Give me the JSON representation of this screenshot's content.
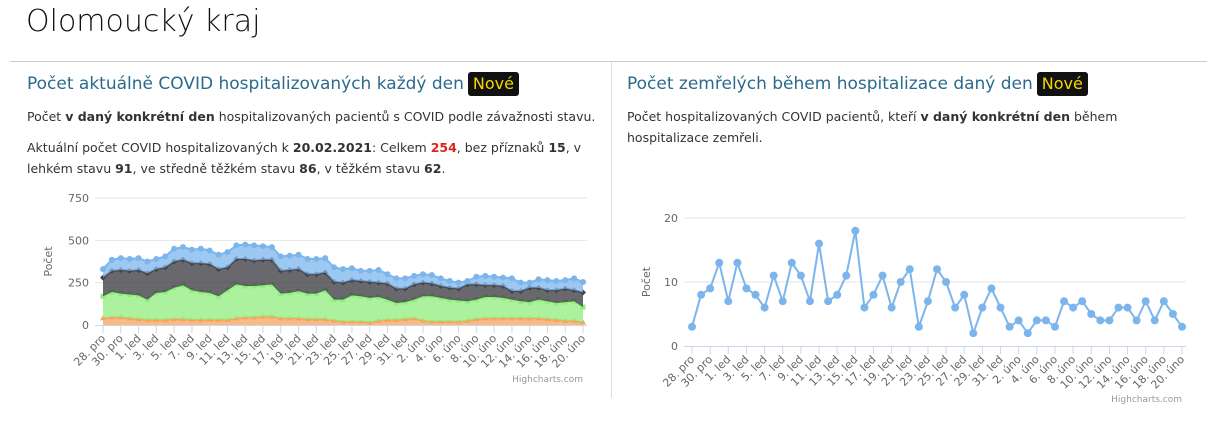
{
  "page_title": "Olomoucký kraj",
  "left": {
    "heading": "Počet aktuálně COVID hospitalizovaných každý den",
    "badge": "Nové",
    "desc_pre": "Počet ",
    "desc_bold": "v daný konkrétní den",
    "desc_post": " hospitalizovaných pacientů s COVID podle závažnosti stavu.",
    "summary": {
      "t1": "Aktuální počet COVID hospitalizovaných k ",
      "date": "20.02.2021",
      "t2": ": Celkem ",
      "total": "254",
      "t3": ", bez příznaků ",
      "none": "15",
      "t4": ", v lehkém stavu ",
      "light": "91",
      "t5": ", ve středně těžkém stavu ",
      "medium": "86",
      "t6": ", v těžkém stavu ",
      "severe": "62",
      "t7": "."
    },
    "credit": "Highcharts.com"
  },
  "right": {
    "heading": "Počet zemřelých během hospitalizace daný den",
    "badge": "Nové",
    "desc_pre": "Počet hospitalizovaných COVID pacientů, kteří ",
    "desc_bold": "v daný konkrétní den",
    "desc_post": " během hospitalizace zemřeli.",
    "credit": "Highcharts.com"
  },
  "chart_data": [
    {
      "type": "area",
      "stacked": true,
      "ylabel": "Počet",
      "ylim": [
        0,
        750
      ],
      "yticks": [
        0,
        250,
        500,
        750
      ],
      "grid": true,
      "xticklabels": [
        "28. pro",
        "30. pro",
        "1. led",
        "3. led",
        "5. led",
        "7. led",
        "9. led",
        "11. led",
        "13. led",
        "15. led",
        "17. led",
        "19. led",
        "21. led",
        "23. led",
        "25. led",
        "27. led",
        "29. led",
        "31. led",
        "2. úno",
        "4. úno",
        "6. úno",
        "8. úno",
        "10. úno",
        "12. úno",
        "14. úno",
        "16. úno",
        "18. úno",
        "20. úno"
      ],
      "series": [
        {
          "color": "#f7a35c",
          "marker": "triangle",
          "values": [
            40,
            45,
            45,
            40,
            35,
            30,
            30,
            30,
            35,
            35,
            30,
            30,
            30,
            30,
            30,
            40,
            45,
            45,
            50,
            50,
            40,
            40,
            40,
            35,
            35,
            35,
            25,
            20,
            20,
            20,
            15,
            25,
            30,
            30,
            35,
            40,
            25,
            20,
            20,
            20,
            20,
            25,
            35,
            40,
            40,
            40,
            40,
            40,
            40,
            40,
            35,
            30,
            25,
            25,
            15
          ]
        },
        {
          "color": "#90ed7d",
          "marker": "square",
          "values": [
            130,
            150,
            140,
            140,
            140,
            120,
            160,
            165,
            185,
            200,
            175,
            165,
            160,
            140,
            175,
            200,
            185,
            185,
            185,
            190,
            145,
            150,
            160,
            150,
            150,
            170,
            125,
            130,
            155,
            150,
            145,
            140,
            120,
            100,
            100,
            110,
            145,
            150,
            140,
            130,
            125,
            115,
            115,
            125,
            125,
            120,
            110,
            100,
            95,
            110,
            105,
            100,
            110,
            115,
            91
          ]
        },
        {
          "color": "#434348",
          "marker": "diamond",
          "values": [
            110,
            125,
            140,
            140,
            150,
            155,
            140,
            145,
            155,
            150,
            160,
            170,
            170,
            160,
            135,
            150,
            160,
            150,
            150,
            145,
            135,
            135,
            130,
            115,
            115,
            105,
            105,
            100,
            90,
            90,
            95,
            85,
            95,
            85,
            80,
            90,
            80,
            75,
            70,
            70,
            70,
            100,
            90,
            70,
            70,
            70,
            50,
            60,
            85,
            70,
            65,
            75,
            80,
            65,
            86
          ]
        },
        {
          "color": "#7cb5ec",
          "marker": "circle",
          "values": [
            50,
            65,
            70,
            70,
            70,
            70,
            60,
            65,
            75,
            75,
            80,
            85,
            80,
            85,
            90,
            80,
            85,
            90,
            80,
            75,
            85,
            85,
            85,
            90,
            90,
            85,
            85,
            80,
            70,
            60,
            65,
            75,
            55,
            60,
            60,
            50,
            50,
            50,
            45,
            40,
            35,
            20,
            45,
            55,
            50,
            50,
            75,
            50,
            30,
            50,
            60,
            55,
            50,
            70,
            62
          ]
        }
      ]
    },
    {
      "type": "line",
      "ylabel": "Počet",
      "ylim": [
        0,
        20
      ],
      "yticks": [
        0,
        10,
        20
      ],
      "grid": true,
      "color": "#7cb5ec",
      "xticklabels": [
        "28. pro",
        "30. pro",
        "1. led",
        "3. led",
        "5. led",
        "7. led",
        "9. led",
        "11. led",
        "13. led",
        "15. led",
        "17. led",
        "19. led",
        "21. led",
        "23. led",
        "25. led",
        "27. led",
        "29. led",
        "31. led",
        "2. úno",
        "4. úno",
        "6. úno",
        "8. úno",
        "10. úno",
        "12. úno",
        "14. úno",
        "16. úno",
        "18. úno",
        "20. úno"
      ],
      "values": [
        3,
        8,
        9,
        13,
        7,
        13,
        9,
        8,
        6,
        11,
        7,
        13,
        11,
        7,
        16,
        7,
        8,
        11,
        18,
        6,
        8,
        11,
        6,
        10,
        12,
        3,
        7,
        12,
        10,
        6,
        8,
        2,
        6,
        9,
        6,
        3,
        4,
        2,
        4,
        4,
        3,
        7,
        6,
        7,
        5,
        4,
        4,
        6,
        6,
        4,
        7,
        4,
        7,
        5,
        3
      ]
    }
  ]
}
